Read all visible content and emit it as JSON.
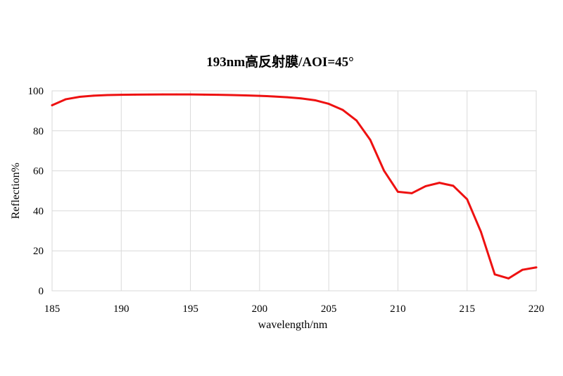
{
  "chart_data": {
    "type": "line",
    "title": "193nm高反射膜/AOI=45°",
    "xlabel": "wavelength/nm",
    "ylabel": "Reflection%",
    "xlim": [
      185,
      220
    ],
    "ylim": [
      0,
      100
    ],
    "x_ticks": [
      "185",
      "190",
      "195",
      "200",
      "205",
      "210",
      "215",
      "220"
    ],
    "y_ticks": [
      "0",
      "20",
      "40",
      "60",
      "80",
      "100"
    ],
    "grid": true,
    "legend": "none",
    "series": [
      {
        "color": "#ee1111",
        "x": [
          185,
          186,
          187,
          188,
          189,
          190,
          191,
          192,
          193,
          194,
          195,
          196,
          197,
          198,
          199,
          200,
          201,
          202,
          203,
          204,
          205,
          206,
          207,
          208,
          209,
          210,
          211,
          212,
          213,
          214,
          215,
          216,
          217,
          218,
          219,
          220
        ],
        "y": [
          92.8,
          95.8,
          97.0,
          97.6,
          97.9,
          98.0,
          98.1,
          98.15,
          98.2,
          98.2,
          98.2,
          98.1,
          98.0,
          97.9,
          97.7,
          97.5,
          97.2,
          96.8,
          96.2,
          95.3,
          93.5,
          90.5,
          85.2,
          75.5,
          60.0,
          49.5,
          48.8,
          52.3,
          54.0,
          52.5,
          45.8,
          29.5,
          8.2,
          6.2,
          10.5,
          11.7
        ]
      }
    ]
  }
}
